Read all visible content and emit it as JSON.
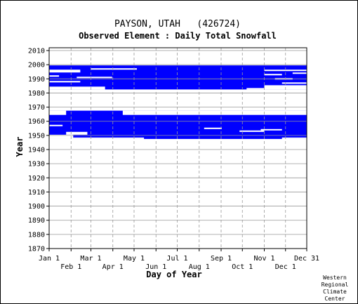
{
  "chart_data": {
    "type": "heatmap",
    "title": "PAYSON, UTAH   (426724)",
    "subtitle": "Observed Element : Daily Total Snowfall",
    "xlabel": "Day of Year",
    "ylabel": "Year",
    "credit": [
      "Western",
      "Regional",
      "Climate",
      "Center"
    ],
    "xlim": [
      1,
      365
    ],
    "ylim": [
      1870,
      2012
    ],
    "grid": true,
    "x_ticks_top": [
      {
        "label": "Jan 1",
        "day": 1
      },
      {
        "label": "Mar 1",
        "day": 60
      },
      {
        "label": "May 1",
        "day": 121
      },
      {
        "label": "Jul 1",
        "day": 182
      },
      {
        "label": "Sep 1",
        "day": 244
      },
      {
        "label": "Nov 1",
        "day": 305
      },
      {
        "label": "Dec 31",
        "day": 365
      }
    ],
    "x_ticks_bottom": [
      {
        "label": "Feb 1",
        "day": 32
      },
      {
        "label": "Apr 1",
        "day": 91
      },
      {
        "label": "Jun 1",
        "day": 152
      },
      {
        "label": "Aug 1",
        "day": 213
      },
      {
        "label": "Oct 1",
        "day": 274
      },
      {
        "label": "Dec 1",
        "day": 335
      }
    ],
    "y_ticks": [
      1870,
      1880,
      1890,
      1900,
      1910,
      1920,
      1930,
      1940,
      1950,
      1960,
      1970,
      1980,
      1990,
      2000,
      2010
    ],
    "series": [
      {
        "color": "#0000ff",
        "records": [
          {
            "years": [
              1947.5,
              1967.5
            ],
            "days": [
              1,
              365
            ]
          },
          {
            "years": [
              1982.5,
              1999.5
            ],
            "days": [
              1,
              365
            ]
          }
        ],
        "gaps": [
          {
            "years": [
              1947.5,
              1950.5
            ],
            "days": [
              1,
              35
            ]
          },
          {
            "years": [
              1950.5,
              1952.5
            ],
            "days": [
              25,
              55
            ]
          },
          {
            "years": [
              1956.5,
              1957.5
            ],
            "days": [
              1,
              20
            ]
          },
          {
            "years": [
              1954.5,
              1955.5
            ],
            "days": [
              220,
              245
            ]
          },
          {
            "years": [
              1952.5,
              1953.5
            ],
            "days": [
              270,
              305
            ]
          },
          {
            "years": [
              1953.5,
              1954.5
            ],
            "days": [
              300,
              330
            ]
          },
          {
            "years": [
              1964.5,
              1967.5
            ],
            "days": [
              1,
              25
            ]
          },
          {
            "years": [
              1964.5,
              1967.5
            ],
            "days": [
              105,
              365
            ]
          },
          {
            "years": [
              1947.5,
              1948.5
            ],
            "days": [
              1,
              135
            ]
          },
          {
            "years": [
              1947.5,
              1948.5
            ],
            "days": [
              330,
              365
            ]
          },
          {
            "years": [
              1982.5,
              1984.5
            ],
            "days": [
              1,
              80
            ]
          },
          {
            "years": [
              1982.5,
              1983.5
            ],
            "days": [
              280,
              305
            ]
          },
          {
            "years": [
              1987.5,
              1988.5
            ],
            "days": [
              1,
              45
            ]
          },
          {
            "years": [
              1990.5,
              1991.5
            ],
            "days": [
              40,
              90
            ]
          },
          {
            "years": [
              1994.5,
              1996.5
            ],
            "days": [
              1,
              45
            ]
          },
          {
            "years": [
              1996.5,
              1997.5
            ],
            "days": [
              60,
              125
            ]
          },
          {
            "years": [
              1982.5,
              1985.5
            ],
            "days": [
              305,
              365
            ]
          },
          {
            "years": [
              1986.5,
              1987.5
            ],
            "days": [
              330,
              365
            ]
          },
          {
            "years": [
              1989.5,
              1990.5
            ],
            "days": [
              320,
              345
            ]
          },
          {
            "years": [
              1992.5,
              1993.5
            ],
            "days": [
              305,
              330
            ]
          },
          {
            "years": [
              1993.5,
              1994.5
            ],
            "days": [
              345,
              365
            ]
          },
          {
            "years": [
              1991.5,
              1992.5
            ],
            "days": [
              1,
              15
            ]
          },
          {
            "years": [
              1995.5,
              1996.5
            ],
            "days": [
              305,
              365
            ]
          }
        ]
      }
    ]
  }
}
